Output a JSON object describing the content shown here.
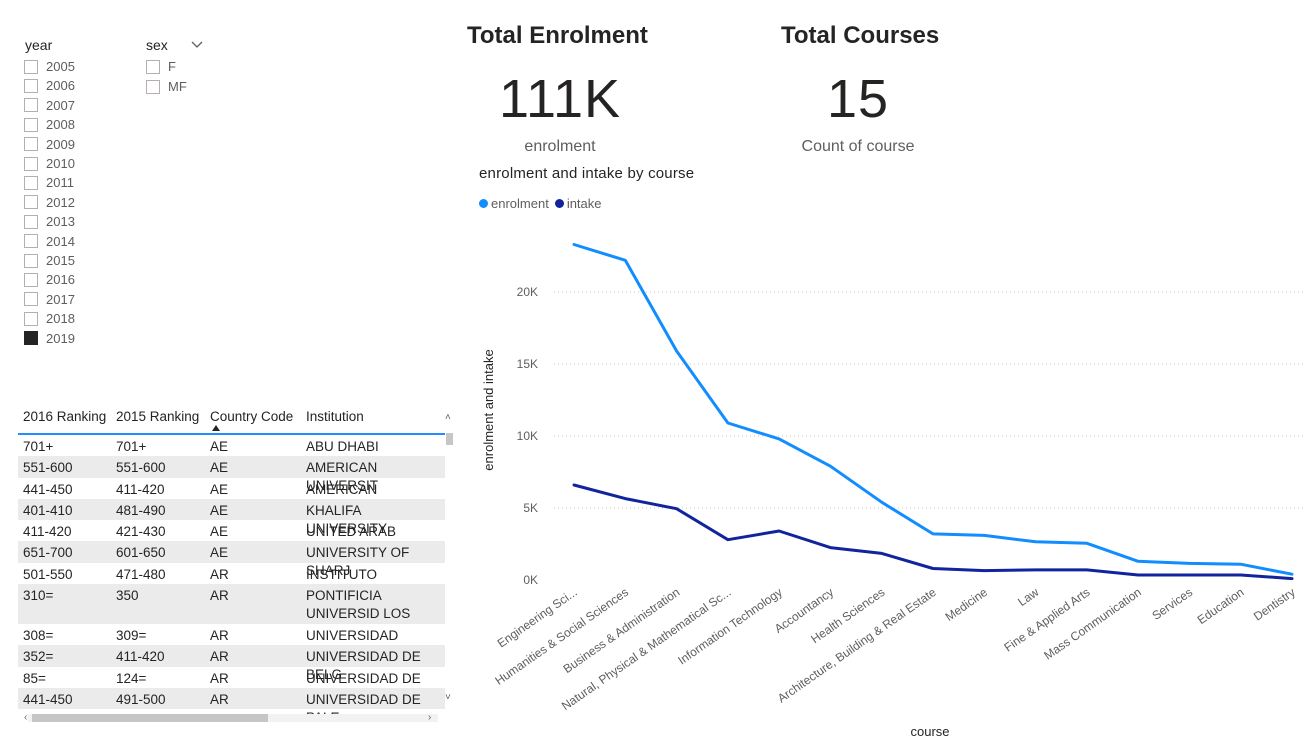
{
  "slicers": {
    "year": {
      "title": "year",
      "items": [
        {
          "label": "2005",
          "checked": false
        },
        {
          "label": "2006",
          "checked": false
        },
        {
          "label": "2007",
          "checked": false
        },
        {
          "label": "2008",
          "checked": false
        },
        {
          "label": "2009",
          "checked": false
        },
        {
          "label": "2010",
          "checked": false
        },
        {
          "label": "2011",
          "checked": false
        },
        {
          "label": "2012",
          "checked": false
        },
        {
          "label": "2013",
          "checked": false
        },
        {
          "label": "2014",
          "checked": false
        },
        {
          "label": "2015",
          "checked": false
        },
        {
          "label": "2016",
          "checked": false
        },
        {
          "label": "2017",
          "checked": false
        },
        {
          "label": "2018",
          "checked": false
        },
        {
          "label": "2019",
          "checked": true
        }
      ]
    },
    "sex": {
      "title": "sex",
      "items": [
        {
          "label": "F",
          "checked": false
        },
        {
          "label": "MF",
          "checked": false
        }
      ]
    }
  },
  "cards": {
    "enrolment": {
      "title": "Total Enrolment",
      "value": "111K",
      "subtitle": "enrolment"
    },
    "courses": {
      "title": "Total Courses",
      "value": "15",
      "subtitle": "Count of course"
    }
  },
  "table": {
    "columns": [
      "2016 Ranking",
      "2015 Ranking",
      "Country Code",
      "Institution"
    ],
    "rows": [
      [
        "701+",
        "701+",
        "AE",
        "ABU DHABI UNIVERSIT"
      ],
      [
        "551-600",
        "551-600",
        "AE",
        "AMERICAN UNIVERSIT"
      ],
      [
        "441-450",
        "411-420",
        "AE",
        "AMERICAN UNIVERSIT"
      ],
      [
        "401-410",
        "481-490",
        "AE",
        "KHALIFA UNIVERSITY"
      ],
      [
        "411-420",
        "421-430",
        "AE",
        "UNITED ARAB EMIRATI"
      ],
      [
        "651-700",
        "601-650",
        "AE",
        "UNIVERSITY OF SHARJ"
      ],
      [
        "501-550",
        "471-480",
        "AR",
        "INSTITUTO TECNOLÓG"
      ],
      [
        "310=",
        "350",
        "AR",
        "PONTIFICIA UNIVERSID LOS BUENOS AIRES (UC"
      ],
      [
        "308=",
        "309=",
        "AR",
        "UNIVERSIDAD AUSTRA"
      ],
      [
        "352=",
        "411-420",
        "AR",
        "UNIVERSIDAD DE BELG"
      ],
      [
        "85=",
        "124=",
        "AR",
        "UNIVERSIDAD DE BUEI"
      ],
      [
        "441-450",
        "491-500",
        "AR",
        "UNIVERSIDAD DE PALE"
      ]
    ]
  },
  "chart_data": {
    "type": "line",
    "title": "enrolment and intake by course",
    "xlabel": "course",
    "ylabel": "enrolment and intake",
    "legend_position": "top-left",
    "grid": true,
    "ylim": [
      0,
      25000
    ],
    "yticks": [
      0,
      5000,
      10000,
      15000,
      20000
    ],
    "ytick_labels": [
      "0K",
      "5K",
      "10K",
      "15K",
      "20K"
    ],
    "categories": [
      "Engineering Sci...",
      "Humanities & Social Sciences",
      "Business & Administration",
      "Natural, Physical & Mathematical Sc...",
      "Information Technology",
      "Accountancy",
      "Health Sciences",
      "Architecture, Building & Real Estate",
      "Medicine",
      "Law",
      "Fine & Applied Arts",
      "Mass Communication",
      "Services",
      "Education",
      "Dentistry"
    ],
    "series": [
      {
        "name": "enrolment",
        "color": "#118dff",
        "values": [
          23300,
          22200,
          15900,
          10900,
          9800,
          7900,
          5400,
          3200,
          3100,
          2650,
          2550,
          1300,
          1150,
          1100,
          400
        ]
      },
      {
        "name": "intake",
        "color": "#12239e",
        "values": [
          6600,
          5650,
          4950,
          2800,
          3400,
          2250,
          1850,
          800,
          650,
          700,
          700,
          350,
          350,
          350,
          100
        ]
      }
    ]
  }
}
